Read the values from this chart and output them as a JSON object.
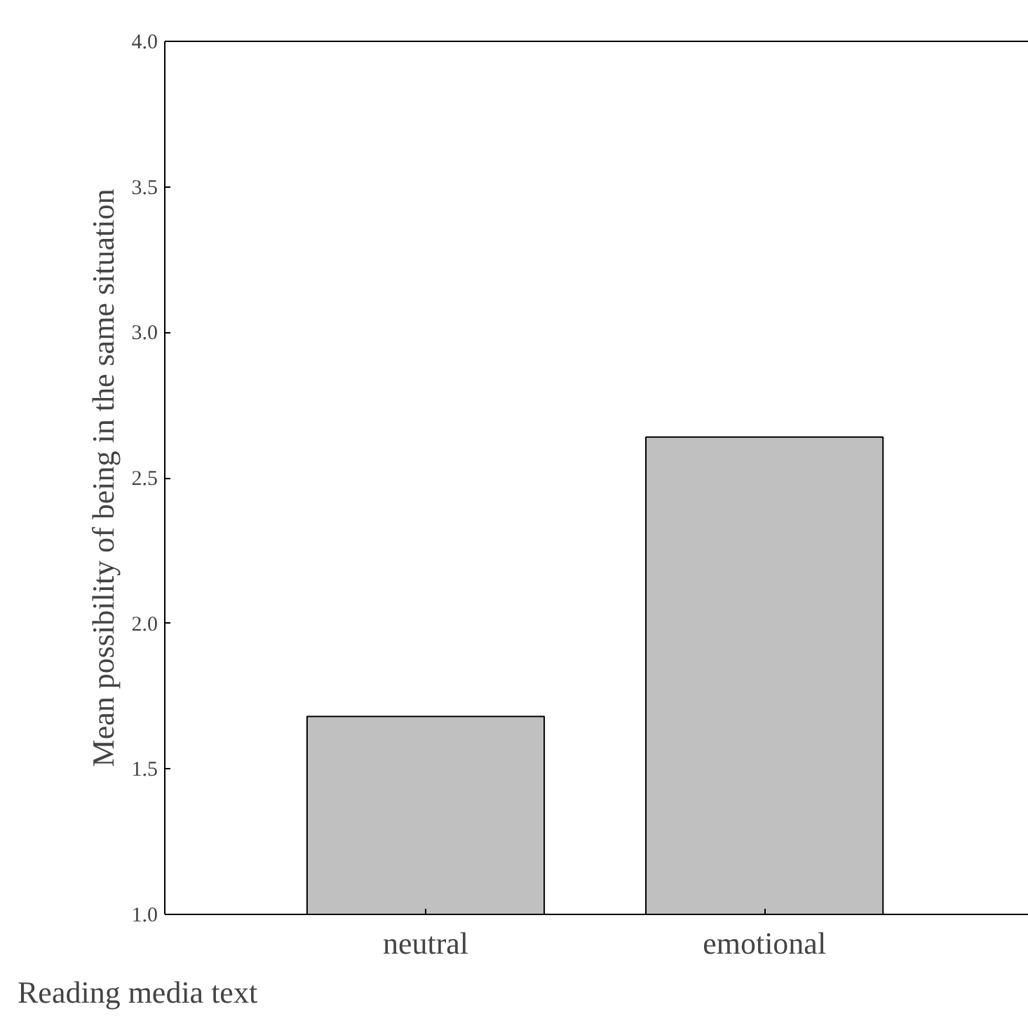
{
  "chart_data": {
    "type": "bar",
    "xlabel": "Reading media text",
    "ylabel": "Mean possibility of being in the same situation",
    "categories": [
      "neutral",
      "emotional"
    ],
    "values": [
      1.68,
      2.64
    ],
    "color": "#c0c0c0",
    "ylim": [
      1.0,
      4.0
    ],
    "yticks": [
      {
        "value": 1,
        "label": "1.0"
      },
      1.5,
      {
        "value": 2,
        "label": "2.0"
      },
      2.5,
      {
        "value": 3,
        "label": "3.0"
      },
      3.5,
      {
        "value": 4,
        "label": "4.0"
      }
    ],
    "grid": false
  }
}
